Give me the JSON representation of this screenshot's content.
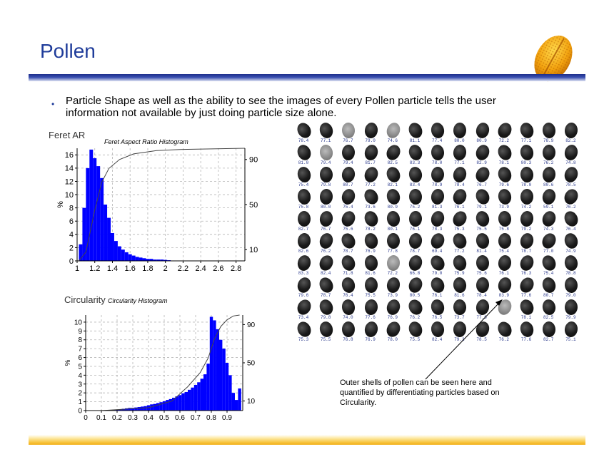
{
  "slide": {
    "title": "Pollen",
    "bullet": "Particle Shape as well as the ability to see the images of every Pollen particle tells the user information not available by just doing particle size alone.",
    "annotation": "Outer shells of pollen can be seen here and quantified by differentiating particles based on Circularity."
  },
  "colors": {
    "title": "#1f3c9a",
    "bars": "#0000ff",
    "band": "#1e2f8c",
    "footer": "#f2b01d",
    "numbers": "#2b3a8c"
  },
  "chart_data": [
    {
      "type": "bar",
      "label": "Feret AR",
      "title": "Feret Aspect Ratio Histogram",
      "ylabel": "%",
      "xlim": [
        1.0,
        2.9
      ],
      "ylim": [
        0,
        17
      ],
      "xticks": [
        "1",
        "1.2",
        "1.4",
        "1.6",
        "1.8",
        "2",
        "2.2",
        "2.4",
        "2.6",
        "2.8"
      ],
      "yticks": [
        "0",
        "2",
        "4",
        "6",
        "8",
        "10",
        "12",
        "14",
        "16"
      ],
      "right_ticks": [
        "10",
        "50",
        "90"
      ],
      "grid": true,
      "bin_width": 0.04,
      "x": [
        1.04,
        1.08,
        1.12,
        1.16,
        1.2,
        1.24,
        1.28,
        1.32,
        1.36,
        1.4,
        1.44,
        1.48,
        1.52,
        1.56,
        1.6,
        1.64,
        1.68,
        1.72,
        1.76,
        1.8,
        1.84,
        1.88,
        1.92,
        1.96,
        2.0,
        2.04
      ],
      "values": [
        2.5,
        8.0,
        14.0,
        16.8,
        15.5,
        14.3,
        12.5,
        8.5,
        6.5,
        4.2,
        3.0,
        2.2,
        1.7,
        1.3,
        1.0,
        0.8,
        0.6,
        0.5,
        0.4,
        0.3,
        0.3,
        0.2,
        0.2,
        0.2,
        0.15,
        0.1
      ],
      "cumulative": [
        [
          1.02,
          0
        ],
        [
          1.1,
          8
        ],
        [
          1.2,
          45
        ],
        [
          1.28,
          70
        ],
        [
          1.36,
          82
        ],
        [
          1.48,
          90
        ],
        [
          1.64,
          95
        ],
        [
          1.9,
          98
        ],
        [
          2.2,
          99
        ],
        [
          2.9,
          100
        ]
      ]
    },
    {
      "type": "bar",
      "label": "Circularity",
      "title": "Circularity Histogram",
      "ylabel": "%",
      "xlim": [
        0,
        1.0
      ],
      "ylim": [
        0,
        10.8
      ],
      "xticks": [
        "0",
        "0.1",
        "0.2",
        "0.3",
        "0.4",
        "0.5",
        "0.6",
        "0.7",
        "0.8",
        "0.9"
      ],
      "yticks": [
        "0",
        "1",
        "2",
        "3",
        "4",
        "5",
        "6",
        "7",
        "8",
        "9",
        "10"
      ],
      "right_ticks": [
        "10",
        "50",
        "90"
      ],
      "grid": true,
      "bin_width": 0.02,
      "x": [
        0.14,
        0.16,
        0.18,
        0.2,
        0.22,
        0.24,
        0.26,
        0.28,
        0.3,
        0.32,
        0.34,
        0.36,
        0.38,
        0.4,
        0.42,
        0.44,
        0.46,
        0.48,
        0.5,
        0.52,
        0.54,
        0.56,
        0.58,
        0.6,
        0.62,
        0.64,
        0.66,
        0.68,
        0.7,
        0.72,
        0.74,
        0.76,
        0.78,
        0.8,
        0.82,
        0.84,
        0.86,
        0.88,
        0.9,
        0.92,
        0.94,
        0.96,
        0.98
      ],
      "values": [
        0.05,
        0.05,
        0.1,
        0.1,
        0.15,
        0.2,
        0.25,
        0.3,
        0.3,
        0.35,
        0.4,
        0.45,
        0.5,
        0.6,
        0.7,
        0.75,
        0.85,
        0.95,
        1.05,
        1.2,
        1.3,
        1.45,
        1.6,
        1.75,
        1.95,
        2.1,
        2.35,
        2.6,
        2.9,
        3.2,
        3.6,
        4.1,
        5.3,
        10.6,
        10.2,
        9.2,
        8.0,
        7.0,
        5.4,
        4.0,
        2.0,
        1.2,
        2.5
      ],
      "cumulative": [
        [
          0.1,
          0
        ],
        [
          0.4,
          3
        ],
        [
          0.55,
          10
        ],
        [
          0.65,
          25
        ],
        [
          0.73,
          40
        ],
        [
          0.78,
          55
        ],
        [
          0.82,
          75
        ],
        [
          0.86,
          88
        ],
        [
          0.9,
          95
        ],
        [
          0.94,
          99
        ],
        [
          0.98,
          100
        ]
      ]
    }
  ],
  "gallery": {
    "rows": [
      [
        "78.4",
        "77.1",
        "76.7",
        "79.0",
        "74.6",
        "81.1",
        "77.4",
        "80.0",
        "80.9",
        "72.2",
        "77.1",
        "78.9",
        "82.2"
      ],
      [
        "81.0",
        "79.4",
        "79.4",
        "81.7",
        "82.5",
        "83.3",
        "78.0",
        "77.1",
        "82.9",
        "78.1",
        "80.3",
        "76.2",
        "74.8"
      ],
      [
        "75.4",
        "79.8",
        "80.7",
        "77.2",
        "82.1",
        "83.4",
        "78.9",
        "78.4",
        "76.7",
        "79.6",
        "78.0",
        "80.6",
        "78.5"
      ],
      [
        "75.8",
        "80.0",
        "75.4",
        "73.6",
        "80.9",
        "75.2",
        "81.3",
        "76.1",
        "79.1",
        "73.9",
        "74.2",
        "59.1",
        "76.2"
      ],
      [
        "82.7",
        "76.7",
        "75.6",
        "78.2",
        "80.1",
        "76.1",
        "78.3",
        "75.3",
        "75.5",
        "75.8",
        "79.2",
        "74.3",
        "76.4"
      ],
      [
        "82.6",
        "76.2",
        "78.7",
        "76.9",
        "77.8",
        "78.7",
        "69.4",
        "77.2",
        "81.4",
        "75.4",
        "78.7",
        "77.0",
        "74.9"
      ],
      [
        "83.3",
        "82.4",
        "71.8",
        "81.6",
        "72.2",
        "66.8",
        "79.0",
        "75.9",
        "75.6",
        "76.1",
        "76.3",
        "75.4",
        "78.8"
      ],
      [
        "79.6",
        "78.7",
        "76.4",
        "75.5",
        "73.9",
        "80.5",
        "76.1",
        "81.6",
        "78.4",
        "83.9",
        "77.6",
        "80.7",
        "79.0"
      ],
      [
        "73.4",
        "79.8",
        "74.0",
        "77.6",
        "76.9",
        "76.2",
        "76.5",
        "73.7",
        "77.6",
        "",
        "78.1",
        "82.5",
        "79.9"
      ],
      [
        "75.3",
        "75.5",
        "76.8",
        "76.9",
        "78.0",
        "75.5",
        "82.4",
        "79.2",
        "78.5",
        "76.2",
        "77.6",
        "82.7",
        "75.1"
      ]
    ],
    "shells": [
      [
        0,
        2
      ],
      [
        1,
        1
      ],
      [
        0,
        4
      ],
      [
        6,
        4
      ],
      [
        8,
        9
      ]
    ]
  }
}
